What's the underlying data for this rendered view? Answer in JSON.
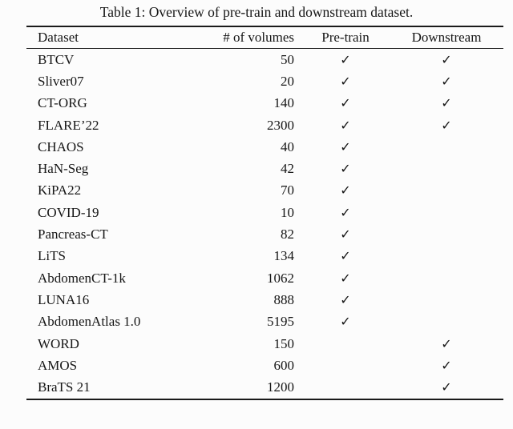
{
  "page": {
    "background": "#fcfcfc",
    "text_color": "#161616",
    "rule_color": "#1a1a1a"
  },
  "caption": "Table 1: Overview of pre-train and downstream dataset.",
  "table": {
    "columns": [
      "Dataset",
      "# of volumes",
      "Pre-train",
      "Downstream"
    ],
    "check_glyph": "✓",
    "rows": [
      {
        "dataset": "BTCV",
        "volumes": "50",
        "pretrain": "✓",
        "downstream": "✓"
      },
      {
        "dataset": "Sliver07",
        "volumes": "20",
        "pretrain": "✓",
        "downstream": "✓"
      },
      {
        "dataset": "CT-ORG",
        "volumes": "140",
        "pretrain": "✓",
        "downstream": "✓"
      },
      {
        "dataset": "FLARE’22",
        "volumes": "2300",
        "pretrain": "✓",
        "downstream": "✓"
      },
      {
        "dataset": "CHAOS",
        "volumes": "40",
        "pretrain": "✓",
        "downstream": ""
      },
      {
        "dataset": "HaN-Seg",
        "volumes": "42",
        "pretrain": "✓",
        "downstream": ""
      },
      {
        "dataset": "KiPA22",
        "volumes": "70",
        "pretrain": "✓",
        "downstream": ""
      },
      {
        "dataset": "COVID-19",
        "volumes": "10",
        "pretrain": "✓",
        "downstream": ""
      },
      {
        "dataset": "Pancreas-CT",
        "volumes": "82",
        "pretrain": "✓",
        "downstream": ""
      },
      {
        "dataset": "LiTS",
        "volumes": "134",
        "pretrain": "✓",
        "downstream": ""
      },
      {
        "dataset": "AbdomenCT-1k",
        "volumes": "1062",
        "pretrain": "✓",
        "downstream": ""
      },
      {
        "dataset": "LUNA16",
        "volumes": "888",
        "pretrain": "✓",
        "downstream": ""
      },
      {
        "dataset": "AbdomenAtlas 1.0",
        "volumes": "5195",
        "pretrain": "✓",
        "downstream": ""
      },
      {
        "dataset": "WORD",
        "volumes": "150",
        "pretrain": "",
        "downstream": "✓"
      },
      {
        "dataset": "AMOS",
        "volumes": "600",
        "pretrain": "",
        "downstream": "✓"
      },
      {
        "dataset": "BraTS 21",
        "volumes": "1200",
        "pretrain": "",
        "downstream": "✓"
      }
    ]
  }
}
